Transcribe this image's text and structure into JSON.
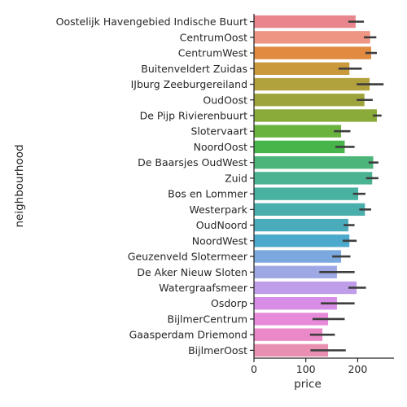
{
  "chart_data": {
    "type": "bar",
    "orientation": "horizontal",
    "xlabel": "price",
    "ylabel": "neighbourhood",
    "xlim": [
      0,
      270
    ],
    "xticks": [
      0,
      100,
      200
    ],
    "grid": false,
    "categories": [
      "Oostelijk Havengebied  Indische Buurt",
      "CentrumOost",
      "CentrumWest",
      "Buitenveldert  Zuidas",
      "IJburg  Zeeburgereiland",
      "OudOost",
      "De Pijp  Rivierenbuurt",
      "Slotervaart",
      "NoordOost",
      "De Baarsjes  OudWest",
      "Zuid",
      "Bos en Lommer",
      "Westerpark",
      "OudNoord",
      "NoordWest",
      "Geuzenveld  Slotermeer",
      "De Aker  Nieuw Sloten",
      "Watergraafsmeer",
      "Osdorp",
      "BijlmerCentrum",
      "Gaasperdam  Driemond",
      "BijlmerOost"
    ],
    "values": [
      196,
      224,
      226,
      184,
      223,
      213,
      237,
      168,
      175,
      230,
      228,
      201,
      214,
      182,
      184,
      168,
      160,
      198,
      160,
      143,
      132,
      143
    ],
    "ci_low": [
      182,
      212,
      215,
      163,
      198,
      198,
      229,
      154,
      157,
      221,
      216,
      191,
      203,
      173,
      171,
      151,
      126,
      182,
      129,
      113,
      108,
      109
    ],
    "ci_high": [
      212,
      236,
      237,
      208,
      250,
      229,
      246,
      186,
      194,
      240,
      240,
      215,
      226,
      194,
      198,
      186,
      194,
      216,
      194,
      175,
      156,
      177
    ],
    "colors": [
      "#e9858d",
      "#ee9583",
      "#e08b3f",
      "#c99a3c",
      "#b2a23d",
      "#9da43b",
      "#8aab3a",
      "#6bb33f",
      "#48b54b",
      "#4bb57a",
      "#4bb392",
      "#48b1a0",
      "#4aaead",
      "#4aacba",
      "#4ba9cb",
      "#7ba9df",
      "#9ea8e5",
      "#c09de8",
      "#d88ee6",
      "#e78ad9",
      "#eb88c8",
      "#e98fb1"
    ]
  }
}
